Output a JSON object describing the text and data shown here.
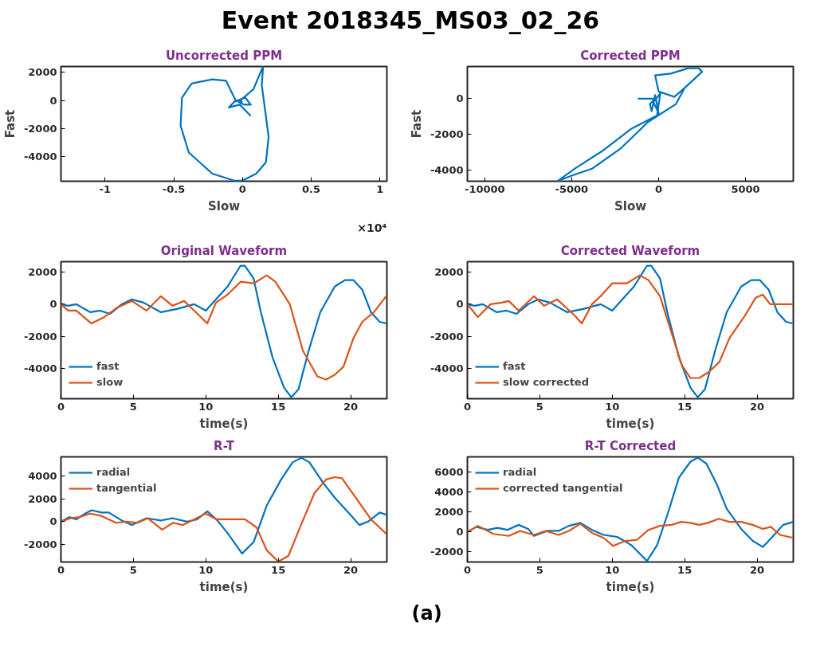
{
  "chart_data": [
    {
      "type": "line",
      "title": "Uncorrected PPM",
      "xlabel": "Slow",
      "ylabel": "Fast",
      "annotations": [
        "Event 2018345_MS03_02_26",
        "×10⁴"
      ],
      "xlim": [
        -1.32,
        1.05
      ],
      "ylim": [
        -5740,
        2410
      ],
      "xticks": [
        -1,
        -0.5,
        0,
        0.5,
        1
      ],
      "yticks": [
        -4000,
        -2000,
        0,
        2000
      ],
      "grid": false,
      "legend": false,
      "series": [
        {
          "color": "#0072bd",
          "x": [
            0.06,
            0.03,
            -0.02,
            -0.1,
            -0.06,
            0.02,
            0.06,
            0.01,
            -0.03,
            0.02,
            0.08,
            0.14,
            0.15,
            0.14,
            0.17,
            0.19,
            0.17,
            0.1,
            0,
            -0.06,
            -0.22,
            -0.39,
            -0.45,
            -0.44,
            -0.37,
            -0.22,
            -0.12,
            -0.05,
            0
          ],
          "values": [
            -1100,
            -800,
            -300,
            -500,
            -100,
            200,
            -300,
            -300,
            -100,
            300,
            800,
            2200,
            2400,
            1100,
            -1100,
            -2600,
            -4400,
            -5200,
            -5700,
            -5700,
            -5200,
            -3700,
            -1800,
            200,
            1200,
            1500,
            1400,
            0,
            -100
          ]
        }
      ]
    },
    {
      "type": "line",
      "title": "Corrected PPM",
      "xlabel": "Slow",
      "ylabel": "Fast",
      "xlim": [
        -11000,
        7750
      ],
      "ylim": [
        -4615,
        1795
      ],
      "xticks": [
        -10000,
        -5000,
        0,
        5000
      ],
      "yticks": [
        -4000,
        -2000,
        0
      ],
      "grid": false,
      "legend": false,
      "series": [
        {
          "color": "#0072bd",
          "x": [
            -1200,
            -200,
            -500,
            -400,
            -200,
            0,
            -300,
            100,
            -100,
            0,
            -1600,
            -3200,
            -4800,
            -5800,
            -5000,
            -3800,
            -2200,
            -600,
            1000,
            1500,
            2500,
            2300,
            1700,
            700,
            -200,
            0,
            900,
            1500
          ],
          "values": [
            0,
            0,
            -300,
            -700,
            200,
            -800,
            -200,
            300,
            -1000,
            -900,
            -1700,
            -2900,
            -3900,
            -4600,
            -4300,
            -3900,
            -2800,
            -1300,
            -300,
            600,
            1500,
            1700,
            1700,
            1400,
            1300,
            400,
            100,
            600
          ]
        }
      ]
    },
    {
      "type": "line",
      "title": "Original Waveform",
      "xlabel": "time(s)",
      "xlim": [
        0,
        22.5
      ],
      "ylim": [
        -5890,
        2650
      ],
      "xticks": [
        0,
        5,
        10,
        15,
        20
      ],
      "yticks": [
        -4000,
        -2000,
        0,
        2000
      ],
      "grid": false,
      "legend": "bottom left",
      "series": [
        {
          "name": "fast",
          "color": "#0072bd",
          "x": [
            0,
            0.5,
            1.06,
            2.03,
            2.7,
            3.4,
            4.2,
            4.9,
            5.7,
            6.9,
            8.0,
            9.2,
            10.0,
            10.7,
            11.5,
            12.4,
            12.7,
            13.3,
            13.8,
            14.6,
            15.4,
            15.9,
            16.4,
            17.1,
            17.9,
            18.9,
            19.6,
            20.2,
            20.8,
            21.4,
            22.0,
            22.45
          ],
          "values": [
            0,
            -100,
            0,
            -500,
            -400,
            -600,
            0,
            300,
            100,
            -500,
            -300,
            0,
            -400,
            300,
            1100,
            2400,
            2400,
            1600,
            -500,
            -3300,
            -5200,
            -5800,
            -5300,
            -2900,
            -500,
            1100,
            1500,
            1500,
            900,
            -500,
            -1100,
            -1200
          ]
        },
        {
          "name": "slow",
          "color": "#d95319",
          "x": [
            0,
            0.5,
            1.06,
            2.1,
            3.0,
            3.9,
            4.9,
            5.9,
            6.9,
            7.7,
            8.5,
            9.2,
            10.1,
            10.7,
            11.5,
            12.4,
            13.3,
            14.2,
            14.8,
            15.8,
            16.7,
            17.7,
            18.3,
            18.9,
            19.5,
            20.2,
            20.8,
            21.6,
            22.45
          ],
          "values": [
            0,
            -400,
            -400,
            -1200,
            -800,
            -200,
            200,
            -400,
            500,
            -100,
            200,
            -400,
            -1200,
            100,
            600,
            1400,
            1300,
            1800,
            1400,
            0,
            -2900,
            -4500,
            -4700,
            -4400,
            -3900,
            -2100,
            -1100,
            -500,
            500
          ]
        }
      ]
    },
    {
      "type": "line",
      "title": "Corrected Waveform",
      "xlabel": "time(s)",
      "xlim": [
        0,
        22.5
      ],
      "ylim": [
        -5890,
        2650
      ],
      "xticks": [
        0,
        5,
        10,
        15,
        20
      ],
      "yticks": [
        -4000,
        -2000,
        0,
        2000
      ],
      "grid": false,
      "legend": "bottom left",
      "series": [
        {
          "name": "fast",
          "color": "#0072bd",
          "x": [
            0,
            0.5,
            1.06,
            2.03,
            2.7,
            3.4,
            4.2,
            4.9,
            5.7,
            6.9,
            8.0,
            9.2,
            10.0,
            10.7,
            11.5,
            12.4,
            12.7,
            13.3,
            13.8,
            14.6,
            15.4,
            15.9,
            16.4,
            17.1,
            17.9,
            18.9,
            19.6,
            20.2,
            20.8,
            21.4,
            22.0,
            22.45
          ],
          "values": [
            0,
            -100,
            0,
            -500,
            -400,
            -600,
            0,
            300,
            100,
            -500,
            -300,
            0,
            -400,
            300,
            1100,
            2400,
            2400,
            1600,
            -500,
            -3300,
            -5200,
            -5800,
            -5300,
            -2900,
            -500,
            1100,
            1500,
            1500,
            900,
            -500,
            -1100,
            -1200
          ]
        },
        {
          "name": "slow corrected",
          "color": "#d95319",
          "x": [
            0,
            0.72,
            1.6,
            2.37,
            2.86,
            3.54,
            4.6,
            5.3,
            6.2,
            7.4,
            7.9,
            8.6,
            9.2,
            10.0,
            11.0,
            11.9,
            12.5,
            13.3,
            14.1,
            14.8,
            15.4,
            16.0,
            16.7,
            17.4,
            18.1,
            19.1,
            19.9,
            20.4,
            20.9,
            21.2,
            21.8,
            22.5
          ],
          "values": [
            0,
            -800,
            0,
            100,
            200,
            -400,
            500,
            -100,
            300,
            -700,
            -1200,
            0,
            500,
            1300,
            1300,
            1800,
            1500,
            500,
            -1800,
            -3800,
            -4600,
            -4600,
            -4200,
            -3600,
            -2100,
            -800,
            400,
            600,
            0,
            0,
            0,
            0
          ]
        }
      ]
    },
    {
      "type": "line",
      "title": "R-T",
      "xlabel": "time(s)",
      "xlim": [
        0,
        22.5
      ],
      "ylim": [
        -3540,
        5680
      ],
      "xticks": [
        0,
        5,
        10,
        15,
        20
      ],
      "yticks": [
        -2000,
        0,
        2000,
        4000
      ],
      "grid": false,
      "legend": "top left",
      "series": [
        {
          "name": "radial",
          "color": "#0072bd",
          "x": [
            0,
            0.58,
            1.07,
            1.65,
            2.13,
            2.8,
            3.3,
            4.2,
            4.9,
            5.9,
            6.9,
            7.7,
            8.7,
            9.4,
            10.1,
            10.8,
            11.5,
            12.5,
            13.3,
            14.2,
            15.2,
            15.99,
            16.6,
            17.15,
            18.1,
            18.9,
            20.06,
            20.6,
            21.2,
            22.0,
            22.48
          ],
          "values": [
            0,
            400,
            200,
            700,
            1000,
            800,
            800,
            100,
            -300,
            300,
            100,
            300,
            0,
            200,
            900,
            100,
            -1000,
            -2800,
            -1800,
            1400,
            3700,
            5200,
            5600,
            5200,
            3400,
            2100,
            500,
            -300,
            0,
            800,
            600
          ]
        },
        {
          "name": "tangential",
          "color": "#d95319",
          "x": [
            0,
            0.68,
            1.26,
            2.03,
            2.8,
            3.8,
            4.55,
            5.3,
            6.0,
            6.98,
            7.75,
            8.4,
            9.2,
            9.98,
            10.76,
            11.9,
            12.7,
            13.5,
            14.2,
            15.0,
            15.7,
            16.6,
            17.5,
            18.3,
            18.9,
            19.4,
            20.4,
            21.4,
            22.48
          ],
          "values": [
            0,
            300,
            400,
            700,
            500,
            -100,
            0,
            -100,
            300,
            -700,
            -100,
            -300,
            200,
            700,
            200,
            200,
            200,
            -500,
            -2500,
            -3500,
            -3000,
            -200,
            2500,
            3700,
            3900,
            3800,
            2000,
            200,
            -1100
          ]
        }
      ]
    },
    {
      "type": "line",
      "title": "R-T Corrected",
      "xlabel": "time(s)",
      "annotations": [
        "(a)"
      ],
      "xlim": [
        0,
        22.5
      ],
      "ylim": [
        -3000,
        7475
      ],
      "xticks": [
        0,
        5,
        10,
        15,
        20
      ],
      "yticks": [
        -2000,
        0,
        2000,
        4000,
        6000
      ],
      "grid": false,
      "legend": "top left",
      "series": [
        {
          "name": "radial",
          "color": "#0072bd",
          "x": [
            0,
            0.62,
            1.4,
            2.08,
            2.76,
            3.54,
            4.2,
            4.6,
            5.5,
            6.3,
            7.0,
            7.8,
            8.6,
            9.4,
            10.35,
            11.3,
            12.4,
            13.1,
            13.85,
            14.6,
            15.4,
            15.9,
            16.5,
            17.2,
            17.9,
            18.9,
            19.7,
            20.4,
            21.05,
            21.8,
            22.5
          ],
          "values": [
            0,
            500,
            200,
            400,
            200,
            700,
            300,
            -400,
            100,
            100,
            600,
            900,
            200,
            -300,
            -500,
            -1300,
            -2900,
            -1300,
            1900,
            5400,
            7000,
            7400,
            6800,
            4800,
            2300,
            300,
            -900,
            -1500,
            -500,
            700,
            1000
          ]
        },
        {
          "name": "corrected tangential",
          "color": "#d95319",
          "x": [
            0,
            0.72,
            1.8,
            2.86,
            3.64,
            4.6,
            5.4,
            6.3,
            7.0,
            7.8,
            8.6,
            9.4,
            10.06,
            10.9,
            11.7,
            12.5,
            13.3,
            14.1,
            14.75,
            15.4,
            16.0,
            16.6,
            17.35,
            18.1,
            18.9,
            19.7,
            20.4,
            20.95,
            21.6,
            22.5
          ],
          "values": [
            0,
            600,
            -200,
            -400,
            100,
            -300,
            100,
            -300,
            100,
            800,
            -100,
            -600,
            -1400,
            -900,
            -800,
            200,
            600,
            700,
            1000,
            900,
            700,
            900,
            1300,
            1000,
            1000,
            700,
            300,
            500,
            -300,
            -600
          ]
        }
      ]
    }
  ]
}
